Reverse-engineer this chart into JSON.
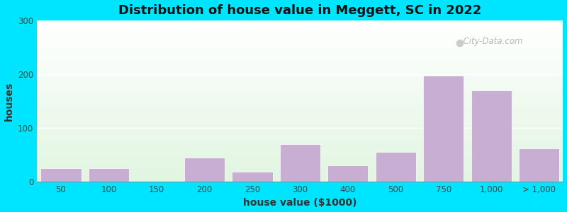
{
  "title": "Distribution of house value in Meggett, SC in 2022",
  "xlabel": "house value ($1000)",
  "ylabel": "houses",
  "bar_labels": [
    "50",
    "100",
    "150",
    "200",
    "250",
    "300",
    "400",
    "500",
    "750",
    "1,000",
    "> 1,000"
  ],
  "bar_heights": [
    25,
    25,
    0,
    45,
    18,
    70,
    30,
    55,
    197,
    170,
    62
  ],
  "bar_color": "#c9aed4",
  "ylim": [
    0,
    300
  ],
  "yticks": [
    0,
    100,
    200,
    300
  ],
  "background_outer": "#00e5ff",
  "title_fontsize": 13,
  "axis_label_fontsize": 10,
  "tick_fontsize": 8.5,
  "watermark_text": "City-Data.com"
}
